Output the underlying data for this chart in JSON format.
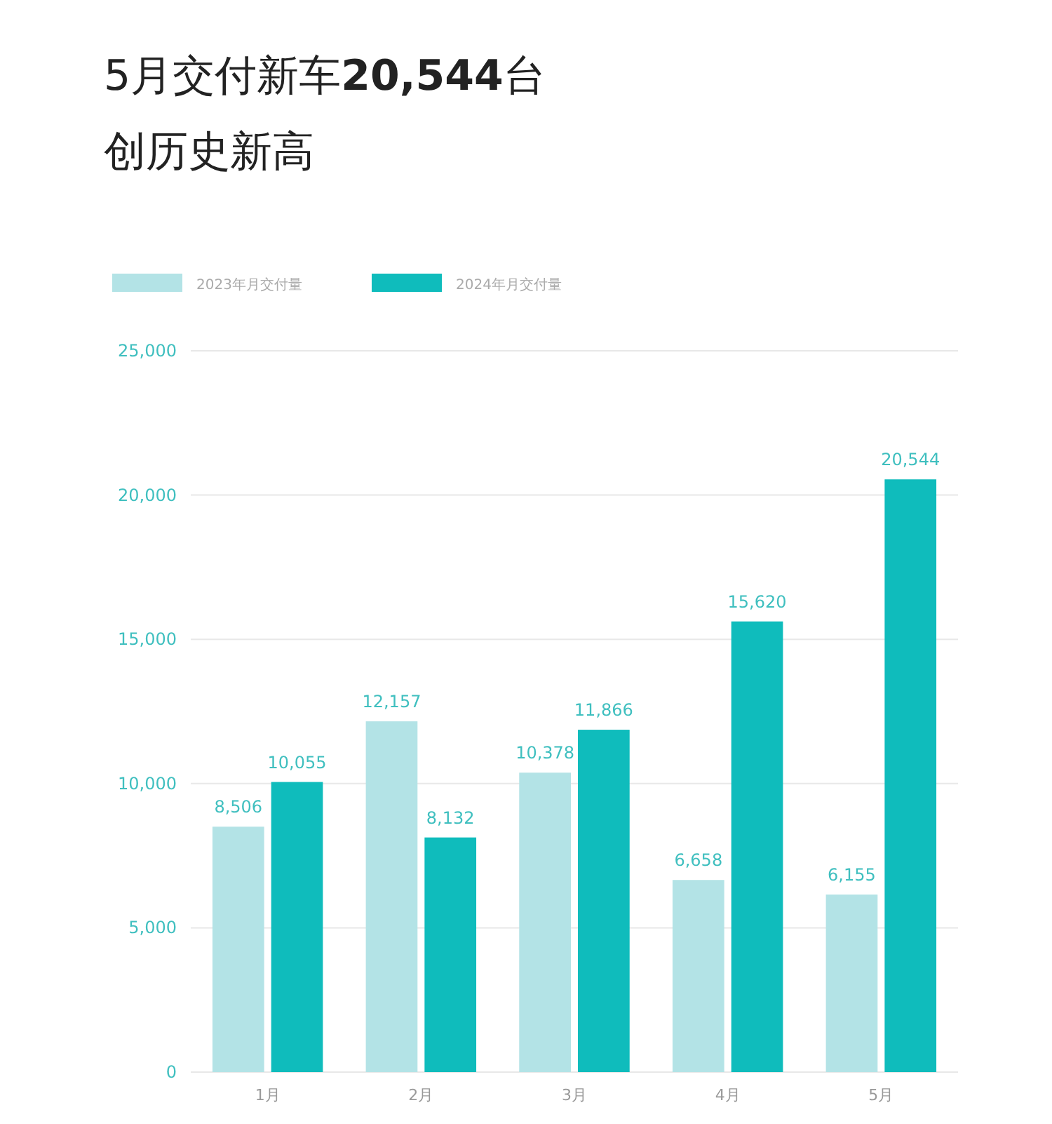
{
  "chart_data": {
    "type": "bar",
    "title": "5月交付新车20,544台",
    "subtitle": "创历史新高",
    "categories": [
      "1月",
      "2月",
      "3月",
      "4月",
      "5月"
    ],
    "series": [
      {
        "name": "2023年月交付量",
        "color": "#b3e3e6",
        "values": [
          8506,
          12157,
          10378,
          6658,
          6155
        ],
        "value_labels": [
          "8,506",
          "12,157",
          "10,378",
          "6,658",
          "6,155"
        ]
      },
      {
        "name": "2024年月交付量",
        "color": "#0fbcbc",
        "values": [
          10055,
          8132,
          11866,
          15620,
          20544
        ],
        "value_labels": [
          "10,055",
          "8,132",
          "11,866",
          "15,620",
          "20,544"
        ]
      }
    ],
    "ylim": [
      0,
      25000
    ],
    "yticks": [
      0,
      {
        "value": 5000,
        "label": "5,000"
      },
      {
        "value": 10000,
        "label": "10,000"
      },
      {
        "value": 15000,
        "label": "15,000"
      },
      {
        "value": 20000,
        "label": "20,000"
      },
      {
        "value": 25000,
        "label": "25,000"
      }
    ],
    "grid": "y",
    "legend": "top left"
  }
}
